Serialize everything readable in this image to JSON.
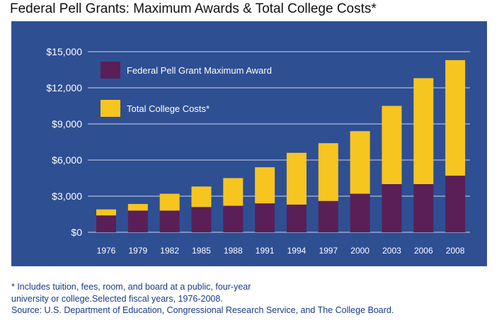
{
  "title": "Federal Pell Grants: Maximum Awards & Total College Costs*",
  "chart_data": {
    "type": "bar",
    "stacked": true,
    "categories": [
      "1976",
      "1979",
      "1982",
      "1985",
      "1988",
      "1991",
      "1994",
      "1997",
      "2000",
      "2003",
      "2006",
      "2008"
    ],
    "series": [
      {
        "name": "Federal Pell Grant Maximum Award",
        "color": "#5a1f57",
        "values": [
          1400,
          1800,
          1800,
          2100,
          2200,
          2400,
          2300,
          2600,
          3200,
          4000,
          4000,
          4700
        ]
      },
      {
        "name": "Total College Costs*",
        "color": "#f7c520",
        "values": [
          500,
          550,
          1400,
          1700,
          2300,
          3000,
          4300,
          4800,
          5200,
          6500,
          8800,
          9600
        ]
      }
    ],
    "ylim": [
      0,
      15000
    ],
    "yticks": [
      {
        "value": 0,
        "label": "$0"
      },
      {
        "value": 3000,
        "label": "$3,000"
      },
      {
        "value": 6000,
        "label": "$6,000"
      },
      {
        "value": 9000,
        "label": "$9,000"
      },
      {
        "value": 12000,
        "label": "$12,000"
      },
      {
        "value": 15000,
        "label": "$15,000"
      }
    ],
    "grid": true,
    "legend": "top-left",
    "background": "#2f4f93"
  },
  "footnote": {
    "line1": "* Includes tuition, fees, room, and board at a public, four-year",
    "line2": "university or college.Selected fiscal years, 1976-2008.",
    "line3": "Source: U.S. Department of Education, Congressional Research Service, and The College Board."
  }
}
